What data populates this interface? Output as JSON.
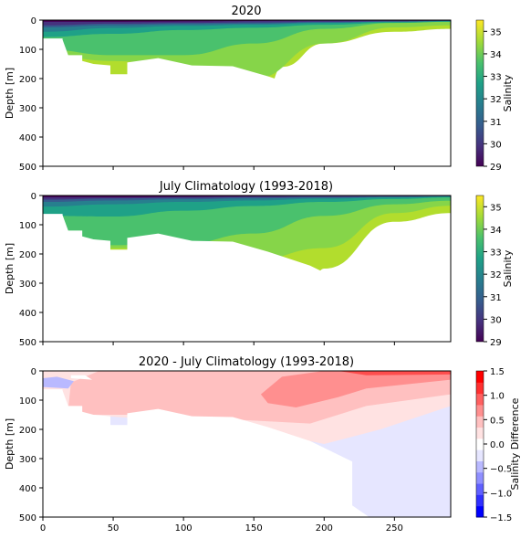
{
  "chart_data": [
    {
      "type": "heatmap",
      "title": "2020",
      "ylabel": "Depth [m]",
      "xlim": [
        0,
        290
      ],
      "ylim": [
        500,
        0
      ],
      "yticks": [
        0,
        100,
        200,
        300,
        400,
        500
      ],
      "colorbar": {
        "label": "Salinity",
        "range": [
          29,
          35.5
        ],
        "ticks": [
          29,
          30,
          31,
          32,
          33,
          34,
          35
        ],
        "colormap": "viridis"
      },
      "layers": [
        {
          "salinity": 29.5,
          "color": "#46327e",
          "depth_profile": {
            "x": [
              0,
              50,
              100,
              150,
              200,
              250,
              290
            ],
            "y": [
              18,
              12,
              10,
              8,
              6,
              4,
              2
            ]
          }
        },
        {
          "salinity": 30.5,
          "color": "#365c8d",
          "depth_profile": {
            "x": [
              0,
              50,
              100,
              150,
              200,
              250,
              290
            ],
            "y": [
              25,
              18,
              14,
              12,
              8,
              5,
              3
            ]
          }
        },
        {
          "salinity": 31.5,
          "color": "#277f8e",
          "depth_profile": {
            "x": [
              0,
              50,
              100,
              150,
              200,
              250,
              290
            ],
            "y": [
              40,
              27,
              20,
              16,
              10,
              6,
              4
            ]
          }
        },
        {
          "salinity": 32.5,
          "color": "#1fa187",
          "depth_profile": {
            "x": [
              0,
              50,
              100,
              150,
              200,
              250,
              290
            ],
            "y": [
              58,
              47,
              34,
              26,
              16,
              9,
              6
            ]
          }
        },
        {
          "salinity": 33.0,
          "color": "#4ac16d",
          "depth_profile": {
            "x": [
              0,
              50,
              100,
              150,
              200,
              250,
              290
            ],
            "y": [
              100,
              120,
              120,
              80,
              30,
              10,
              6
            ]
          }
        },
        {
          "salinity": 33.5,
          "color": "#86d549",
          "depth_profile": {
            "x": [
              0,
              50,
              100,
              150,
              200,
              250,
              290
            ],
            "y": [
              120,
              140,
              160,
              200,
              80,
              25,
              18
            ]
          }
        },
        {
          "salinity": 34.5,
          "color": "#b2dd2d",
          "depth_profile": {
            "x": [
              0,
              150,
              170,
              200,
              250,
              290
            ],
            "y": [
              500,
              500,
              160,
              80,
              40,
              30
            ]
          }
        }
      ]
    },
    {
      "type": "heatmap",
      "title": "July Climatology (1993-2018)",
      "ylabel": "Depth [m]",
      "xlim": [
        0,
        290
      ],
      "ylim": [
        500,
        0
      ],
      "yticks": [
        0,
        100,
        200,
        300,
        400,
        500
      ],
      "colorbar": {
        "label": "Salinity",
        "range": [
          29,
          35.5
        ],
        "ticks": [
          29,
          30,
          31,
          32,
          33,
          34,
          35
        ],
        "colormap": "viridis"
      },
      "layers": [
        {
          "salinity": 29.5,
          "color": "#46327e",
          "depth_profile": {
            "x": [
              0,
              50,
              100,
              150,
              200,
              250,
              290
            ],
            "y": [
              14,
              10,
              8,
              6,
              5,
              3,
              2
            ]
          }
        },
        {
          "salinity": 30.5,
          "color": "#365c8d",
          "depth_profile": {
            "x": [
              0,
              50,
              100,
              150,
              200,
              250,
              290
            ],
            "y": [
              22,
              17,
              13,
              10,
              7,
              5,
              3
            ]
          }
        },
        {
          "salinity": 31.5,
          "color": "#277f8e",
          "depth_profile": {
            "x": [
              0,
              50,
              100,
              150,
              200,
              250,
              290
            ],
            "y": [
              38,
              30,
              22,
              17,
              11,
              7,
              4
            ]
          }
        },
        {
          "salinity": 32.5,
          "color": "#1fa187",
          "depth_profile": {
            "x": [
              0,
              50,
              100,
              150,
              200,
              250,
              290
            ],
            "y": [
              70,
              72,
              52,
              36,
              22,
              12,
              7
            ]
          }
        },
        {
          "salinity": 33.0,
          "color": "#4ac16d",
          "depth_profile": {
            "x": [
              0,
              50,
              100,
              150,
              200,
              250,
              290
            ],
            "y": [
              150,
              170,
              165,
              130,
              70,
              30,
              18
            ]
          }
        },
        {
          "salinity": 33.5,
          "color": "#86d549",
          "depth_profile": {
            "x": [
              0,
              50,
              100,
              150,
              200,
              250,
              290
            ],
            "y": [
              160,
              180,
              190,
              220,
              180,
              60,
              35
            ]
          }
        },
        {
          "salinity": 34.5,
          "color": "#b2dd2d",
          "depth_profile": {
            "x": [
              0,
              180,
              200,
              250,
              290
            ],
            "y": [
              500,
              500,
              250,
              90,
              60
            ]
          }
        }
      ]
    },
    {
      "type": "heatmap",
      "title": "2020 - July Climatology (1993-2018)",
      "ylabel": "Depth [m]",
      "xlim": [
        0,
        290
      ],
      "ylim": [
        500,
        0
      ],
      "xticks": [
        0,
        50,
        100,
        150,
        200,
        250
      ],
      "yticks": [
        0,
        100,
        200,
        300,
        400,
        500
      ],
      "colorbar": {
        "label": "Salinity Difference",
        "range": [
          -1.5,
          1.5
        ],
        "ticks": [
          -1.5,
          -1.0,
          -0.5,
          0.0,
          0.5,
          1.0,
          1.5
        ],
        "colormap": "bwr"
      },
      "regions": [
        {
          "difference": -0.15,
          "color": "#e6e6ff",
          "description_x_range": [
            200,
            290
          ],
          "description_depth_range": [
            100,
            500
          ]
        },
        {
          "difference": 0.1,
          "color": "#ffe2e2",
          "description_x_range": [
            130,
            290
          ],
          "description_depth_range": [
            40,
            260
          ]
        },
        {
          "difference": 0.4,
          "color": "#ffc0c0",
          "description_x_range": [
            0,
            290
          ],
          "description_depth_range": [
            0,
            200
          ]
        },
        {
          "difference": 0.8,
          "color": "#ff8f8f",
          "description_x_range": [
            150,
            290
          ],
          "description_depth_range": [
            0,
            200
          ]
        },
        {
          "difference": 1.2,
          "color": "#ff4d4d",
          "description_x_range": [
            210,
            290
          ],
          "description_depth_range": [
            0,
            30
          ]
        },
        {
          "difference": -0.5,
          "color": "#b9b9ff",
          "description_x_range": [
            0,
            20
          ],
          "description_depth_range": [
            20,
            60
          ]
        }
      ]
    }
  ],
  "bathymetry": {
    "x": [
      0,
      14,
      14,
      18,
      28,
      28,
      36,
      48,
      48,
      60,
      60,
      82,
      106,
      135,
      160,
      190,
      220,
      220,
      232,
      290
    ],
    "y": [
      63,
      63,
      67,
      120,
      120,
      140,
      150,
      155,
      185,
      185,
      145,
      130,
      155,
      158,
      192,
      240,
      310,
      460,
      500,
      500
    ]
  }
}
